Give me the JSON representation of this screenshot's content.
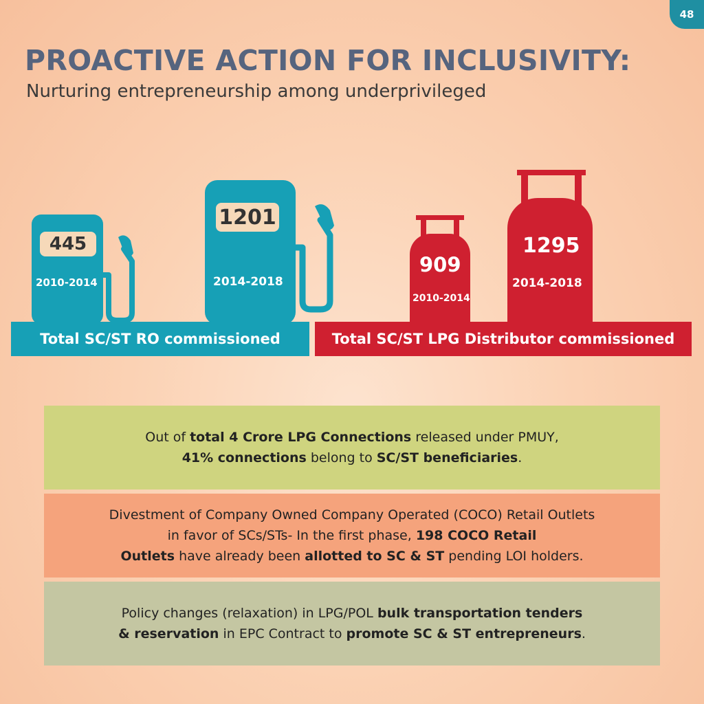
{
  "page_number": "48",
  "title": "PROACTIVE ACTION FOR INCLUSIVITY:",
  "subtitle": "Nurturing entrepreneurship among underprivileged",
  "ro": {
    "banner": "Total SC/ST RO commissioned",
    "before_value": "445",
    "before_period": "2010-2014",
    "after_value": "1201",
    "after_period": "2014-2018",
    "color": "#17a0b6"
  },
  "lpg": {
    "banner": "Total SC/ST LPG Distributor commissioned",
    "before_value": "909",
    "before_period": "2010-2014",
    "after_value": "1295",
    "after_period": "2014-2018",
    "color": "#cf2030"
  },
  "info": {
    "box1": {
      "p1": "Out of ",
      "b1": "total 4 Crore LPG Connections",
      "p2": " released under PMUY,",
      "b2": "41% connections",
      "p3": " belong to ",
      "b3": "SC/ST beneficiaries",
      "p4": "."
    },
    "box2": {
      "p1": "Divestment of Company Owned Company Operated (COCO) Retail Outlets",
      "p2": "in favor of SCs/STs- In the first phase, ",
      "b1": "198 COCO Retail",
      "b2": "Outlets",
      "p3": " have already been ",
      "b3": "allotted to SC & ST",
      "p4": " pending LOI holders."
    },
    "box3": {
      "p1": "Policy changes (relaxation) in LPG/POL ",
      "b1": "bulk transportation tenders",
      "b2": "& reservation",
      "p2": " in EPC Contract to ",
      "b3": "promote SC & ST entrepreneurs",
      "p3": "."
    }
  }
}
